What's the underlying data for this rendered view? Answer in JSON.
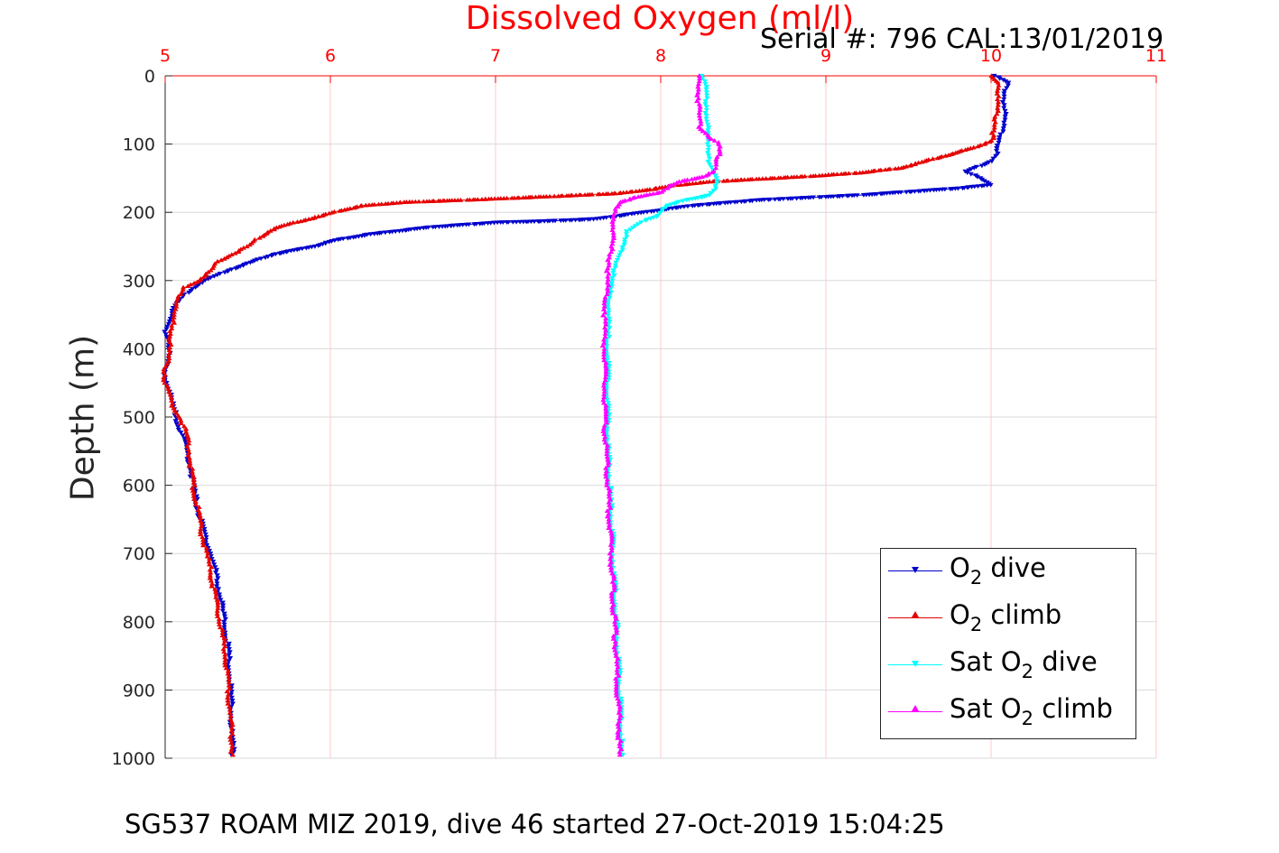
{
  "header": {
    "title": "Dissolved Oxygen (ml/l)",
    "serial": "Serial #: 796  CAL:13/01/2019"
  },
  "footer": {
    "caption": "SG537 ROAM MIZ 2019, dive 46 started 27-Oct-2019 15:04:25"
  },
  "legend": {
    "items": [
      {
        "prefix": "O",
        "sub": "2",
        "suffix": " dive",
        "color": "#0000cc",
        "marker": "down-triangle"
      },
      {
        "prefix": "O",
        "sub": "2",
        "suffix": " climb",
        "color": "#e60000",
        "marker": "up-triangle"
      },
      {
        "prefix": "Sat O",
        "sub": "2",
        "suffix": " dive",
        "color": "#00ffff",
        "marker": "down-triangle"
      },
      {
        "prefix": "Sat O",
        "sub": "2",
        "suffix": " climb",
        "color": "#ff00ff",
        "marker": "up-triangle"
      }
    ]
  },
  "chart_data": {
    "type": "scatter",
    "title": "Dissolved Oxygen (ml/l)",
    "xlabel": "",
    "ylabel": "Depth (m)",
    "xlim": [
      5,
      11
    ],
    "ylim": [
      0,
      1000
    ],
    "y_reversed": true,
    "x_axis_position": "top",
    "x_ticks": [
      5,
      6,
      7,
      8,
      9,
      10,
      11
    ],
    "y_ticks": [
      0,
      100,
      200,
      300,
      400,
      500,
      600,
      700,
      800,
      900,
      1000
    ],
    "grid": true,
    "legend_position": "bottom-right",
    "colors": {
      "x_axis": "#ff0000",
      "grid_x": "#ffc8c8",
      "grid_y": "#d9d9d9"
    },
    "series": [
      {
        "name": "O2 dive",
        "color": "#0000cc",
        "marker": "down-triangle",
        "points": [
          [
            10.02,
            0
          ],
          [
            10.1,
            10
          ],
          [
            10.08,
            30
          ],
          [
            10.08,
            60
          ],
          [
            10.06,
            90
          ],
          [
            10.04,
            110
          ],
          [
            10.0,
            125
          ],
          [
            9.95,
            130
          ],
          [
            9.85,
            140
          ],
          [
            9.93,
            150
          ],
          [
            10.0,
            160
          ],
          [
            9.8,
            165
          ],
          [
            9.2,
            175
          ],
          [
            8.6,
            182
          ],
          [
            8.2,
            190
          ],
          [
            7.9,
            200
          ],
          [
            7.6,
            210
          ],
          [
            7.3,
            213
          ],
          [
            7.0,
            215
          ],
          [
            6.6,
            222
          ],
          [
            6.25,
            232
          ],
          [
            6.05,
            240
          ],
          [
            5.9,
            250
          ],
          [
            5.65,
            262
          ],
          [
            5.5,
            275
          ],
          [
            5.35,
            288
          ],
          [
            5.2,
            305
          ],
          [
            5.12,
            320
          ],
          [
            5.05,
            340
          ],
          [
            5.02,
            360
          ],
          [
            5.0,
            375
          ],
          [
            5.03,
            390
          ],
          [
            5.02,
            410
          ],
          [
            5.0,
            430
          ],
          [
            5.01,
            450
          ],
          [
            5.04,
            480
          ],
          [
            5.08,
            510
          ],
          [
            5.12,
            540
          ],
          [
            5.15,
            570
          ],
          [
            5.17,
            600
          ],
          [
            5.2,
            640
          ],
          [
            5.25,
            680
          ],
          [
            5.3,
            720
          ],
          [
            5.33,
            760
          ],
          [
            5.36,
            800
          ],
          [
            5.38,
            840
          ],
          [
            5.39,
            880
          ],
          [
            5.4,
            920
          ],
          [
            5.4,
            960
          ],
          [
            5.41,
            995
          ]
        ]
      },
      {
        "name": "O2 climb",
        "color": "#e60000",
        "marker": "up-triangle",
        "points": [
          [
            10.0,
            0
          ],
          [
            10.05,
            10
          ],
          [
            10.04,
            30
          ],
          [
            10.03,
            60
          ],
          [
            10.02,
            80
          ],
          [
            10.0,
            95
          ],
          [
            9.9,
            105
          ],
          [
            9.75,
            115
          ],
          [
            9.6,
            125
          ],
          [
            9.45,
            135
          ],
          [
            9.2,
            142
          ],
          [
            8.9,
            147
          ],
          [
            8.6,
            151
          ],
          [
            8.3,
            155
          ],
          [
            8.1,
            160
          ],
          [
            7.95,
            166
          ],
          [
            7.75,
            172
          ],
          [
            7.3,
            177
          ],
          [
            7.0,
            180
          ],
          [
            6.8,
            182
          ],
          [
            6.45,
            185
          ],
          [
            6.2,
            190
          ],
          [
            6.05,
            198
          ],
          [
            5.95,
            205
          ],
          [
            5.78,
            215
          ],
          [
            5.65,
            225
          ],
          [
            5.58,
            235
          ],
          [
            5.5,
            250
          ],
          [
            5.4,
            262
          ],
          [
            5.32,
            272
          ],
          [
            5.28,
            285
          ],
          [
            5.2,
            300
          ],
          [
            5.12,
            310
          ],
          [
            5.07,
            330
          ],
          [
            5.05,
            350
          ],
          [
            5.04,
            370
          ],
          [
            5.03,
            390
          ],
          [
            5.02,
            410
          ],
          [
            5.0,
            430
          ],
          [
            5.0,
            450
          ],
          [
            5.04,
            480
          ],
          [
            5.1,
            505
          ],
          [
            5.13,
            530
          ],
          [
            5.15,
            560
          ],
          [
            5.17,
            600
          ],
          [
            5.2,
            640
          ],
          [
            5.23,
            680
          ],
          [
            5.27,
            720
          ],
          [
            5.3,
            760
          ],
          [
            5.33,
            800
          ],
          [
            5.36,
            840
          ],
          [
            5.38,
            880
          ],
          [
            5.39,
            920
          ],
          [
            5.4,
            960
          ],
          [
            5.41,
            995
          ]
        ]
      },
      {
        "name": "Sat O2 dive",
        "color": "#00ffff",
        "marker": "down-triangle",
        "points": [
          [
            8.26,
            0
          ],
          [
            8.27,
            20
          ],
          [
            8.28,
            50
          ],
          [
            8.28,
            80
          ],
          [
            8.29,
            100
          ],
          [
            8.3,
            130
          ],
          [
            8.33,
            150
          ],
          [
            8.34,
            165
          ],
          [
            8.3,
            175
          ],
          [
            8.15,
            182
          ],
          [
            8.05,
            190
          ],
          [
            8.0,
            197
          ],
          [
            7.98,
            205
          ],
          [
            7.9,
            212
          ],
          [
            7.85,
            220
          ],
          [
            7.8,
            228
          ],
          [
            7.78,
            240
          ],
          [
            7.76,
            255
          ],
          [
            7.74,
            270
          ],
          [
            7.72,
            285
          ],
          [
            7.7,
            300
          ],
          [
            7.69,
            330
          ],
          [
            7.68,
            360
          ],
          [
            7.68,
            400
          ],
          [
            7.68,
            450
          ],
          [
            7.68,
            500
          ],
          [
            7.68,
            550
          ],
          [
            7.69,
            600
          ],
          [
            7.7,
            650
          ],
          [
            7.71,
            700
          ],
          [
            7.72,
            750
          ],
          [
            7.73,
            800
          ],
          [
            7.74,
            850
          ],
          [
            7.75,
            900
          ],
          [
            7.76,
            950
          ],
          [
            7.76,
            995
          ]
        ]
      },
      {
        "name": "Sat O2 climb",
        "color": "#ff00ff",
        "marker": "up-triangle",
        "points": [
          [
            8.23,
            0
          ],
          [
            8.23,
            20
          ],
          [
            8.23,
            50
          ],
          [
            8.24,
            75
          ],
          [
            8.3,
            90
          ],
          [
            8.35,
            100
          ],
          [
            8.35,
            115
          ],
          [
            8.34,
            130
          ],
          [
            8.33,
            140
          ],
          [
            8.25,
            148
          ],
          [
            8.12,
            155
          ],
          [
            8.05,
            162
          ],
          [
            8.0,
            170
          ],
          [
            7.85,
            178
          ],
          [
            7.75,
            185
          ],
          [
            7.72,
            195
          ],
          [
            7.72,
            210
          ],
          [
            7.71,
            230
          ],
          [
            7.7,
            250
          ],
          [
            7.69,
            270
          ],
          [
            7.68,
            290
          ],
          [
            7.67,
            320
          ],
          [
            7.66,
            360
          ],
          [
            7.66,
            400
          ],
          [
            7.66,
            450
          ],
          [
            7.66,
            500
          ],
          [
            7.67,
            550
          ],
          [
            7.68,
            600
          ],
          [
            7.69,
            650
          ],
          [
            7.7,
            700
          ],
          [
            7.71,
            750
          ],
          [
            7.72,
            800
          ],
          [
            7.73,
            850
          ],
          [
            7.74,
            900
          ],
          [
            7.75,
            950
          ],
          [
            7.75,
            995
          ]
        ]
      }
    ]
  }
}
